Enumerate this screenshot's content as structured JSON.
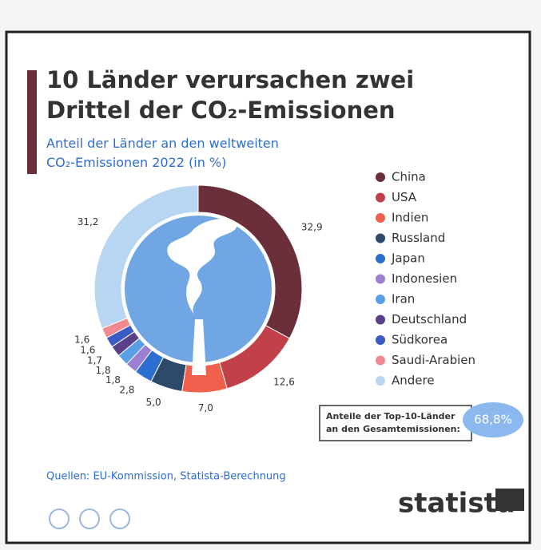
{
  "chart_data": {
    "type": "pie",
    "donut": true,
    "title": "10 Länder verursachen zwei Drittel der CO₂-Emissionen",
    "subtitle": "Anteil der Länder an den weltweiten CO₂-Emissionen 2022 (in %)",
    "categories": [
      "China",
      "USA",
      "Indien",
      "Russland",
      "Japan",
      "Indonesien",
      "Iran",
      "Deutschland",
      "Südkorea",
      "Saudi-Arabien",
      "Andere"
    ],
    "values": [
      32.9,
      12.6,
      7.0,
      5.0,
      2.8,
      1.8,
      1.8,
      1.7,
      1.6,
      1.6,
      31.2
    ],
    "value_labels": [
      "32,9",
      "12,6",
      "7,0",
      "5,0",
      "2,8",
      "1,8",
      "1,8",
      "1,7",
      "1,6",
      "1,6",
      "31,2"
    ],
    "colors": [
      "#6b2f3a",
      "#c2404a",
      "#f0604d",
      "#2e4a6b",
      "#2d6ed1",
      "#9b7fd0",
      "#5a9ee6",
      "#5a3f8a",
      "#3b5bc4",
      "#f08a90",
      "#b8d6f2"
    ],
    "annotation": {
      "text": "Anteile der Top-10-Länder an den Gesamtemissionen:",
      "value_label": "68,8%"
    },
    "source": "Quellen: EU-Kommission, Statista-Berechnung",
    "logo": "statista"
  }
}
